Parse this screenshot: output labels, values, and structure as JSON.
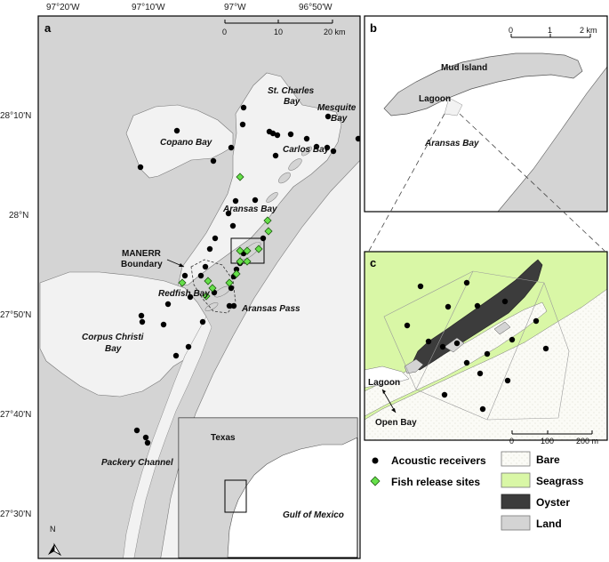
{
  "longitude_labels": [
    "97°20'W",
    "97°10'W",
    "97°W",
    "96°50'W"
  ],
  "latitude_labels": [
    "28°10'N",
    "28°N",
    "27°50'N",
    "27°40'N",
    "27°30'N"
  ],
  "panels": {
    "a": {
      "label": "a",
      "scale_labels": [
        "0",
        "10",
        "20 km"
      ],
      "places": {
        "copano": "Copano Bay",
        "stcharles1": "St. Charles",
        "stcharles2": "Bay",
        "mesquite1": "Mesquite",
        "mesquite2": "Bay",
        "carlos": "Carlos Bay",
        "aransas": "Aransas Bay",
        "manerr1": "MANERR",
        "manerr2": "Boundary",
        "redfish": "Redfish Bay",
        "aransaspass": "Aransas Pass",
        "corpus1": "Corpus Christi",
        "corpus2": "Bay",
        "packery": "Packery Channel"
      },
      "inset": {
        "texas": "Texas",
        "gulf": "Gulf of Mexico"
      },
      "north": "N"
    },
    "b": {
      "label": "b",
      "scale_labels": [
        "0",
        "1",
        "2 km"
      ],
      "places": {
        "mud": "Mud Island",
        "lagoon": "Lagoon",
        "aransas": "Aransas Bay"
      }
    },
    "c": {
      "label": "c",
      "scale_labels": [
        "0",
        "100",
        "200 m"
      ],
      "places": {
        "lagoon": "Lagoon",
        "openbay": "Open Bay"
      }
    }
  },
  "legend": {
    "receivers": "Acoustic receivers",
    "release": "Fish release sites",
    "bare": "Bare",
    "seagrass": "Seagrass",
    "oyster": "Oyster",
    "land": "Land"
  },
  "colors": {
    "land": "#d4d4d4",
    "water": "#f2f2f2",
    "seagrass": "#d9f7a6",
    "oyster": "#3c3c3c",
    "release": "#66e04a",
    "bare": "#fbfbf6"
  }
}
